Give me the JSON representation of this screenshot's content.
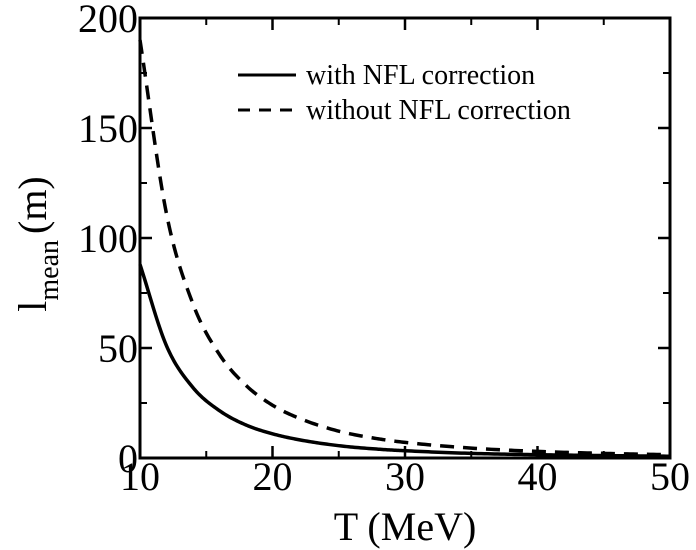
{
  "chart_data": {
    "type": "line",
    "title": "",
    "xlabel": "T (MeV)",
    "ylabel_main": "l",
    "ylabel_sub": "mean",
    "ylabel_unit": "(m)",
    "xlim": [
      10,
      50
    ],
    "ylim": [
      0,
      200
    ],
    "xticks": [
      10,
      20,
      30,
      40,
      50
    ],
    "yticks": [
      0,
      50,
      100,
      150,
      200
    ],
    "grid": false,
    "legend_position": "top-right",
    "series": [
      {
        "name": "with NFL correction",
        "style": "solid",
        "color": "#000000",
        "x": [
          10,
          12,
          14,
          16,
          18,
          20,
          22,
          25,
          28,
          30,
          35,
          40,
          45,
          50
        ],
        "y": [
          88,
          51,
          32,
          21.5,
          15,
          11,
          8.3,
          5.6,
          4.0,
          3.3,
          2.1,
          1.5,
          1.1,
          0.8
        ]
      },
      {
        "name": "without NFL correction",
        "style": "dashed",
        "color": "#000000",
        "x": [
          10,
          12,
          14,
          16,
          18,
          20,
          22,
          25,
          28,
          30,
          35,
          40,
          45,
          50
        ],
        "y": [
          190,
          111,
          70,
          47,
          33,
          24,
          18.1,
          12.2,
          8.7,
          7.1,
          4.5,
          3.0,
          2.1,
          1.5
        ]
      }
    ]
  }
}
